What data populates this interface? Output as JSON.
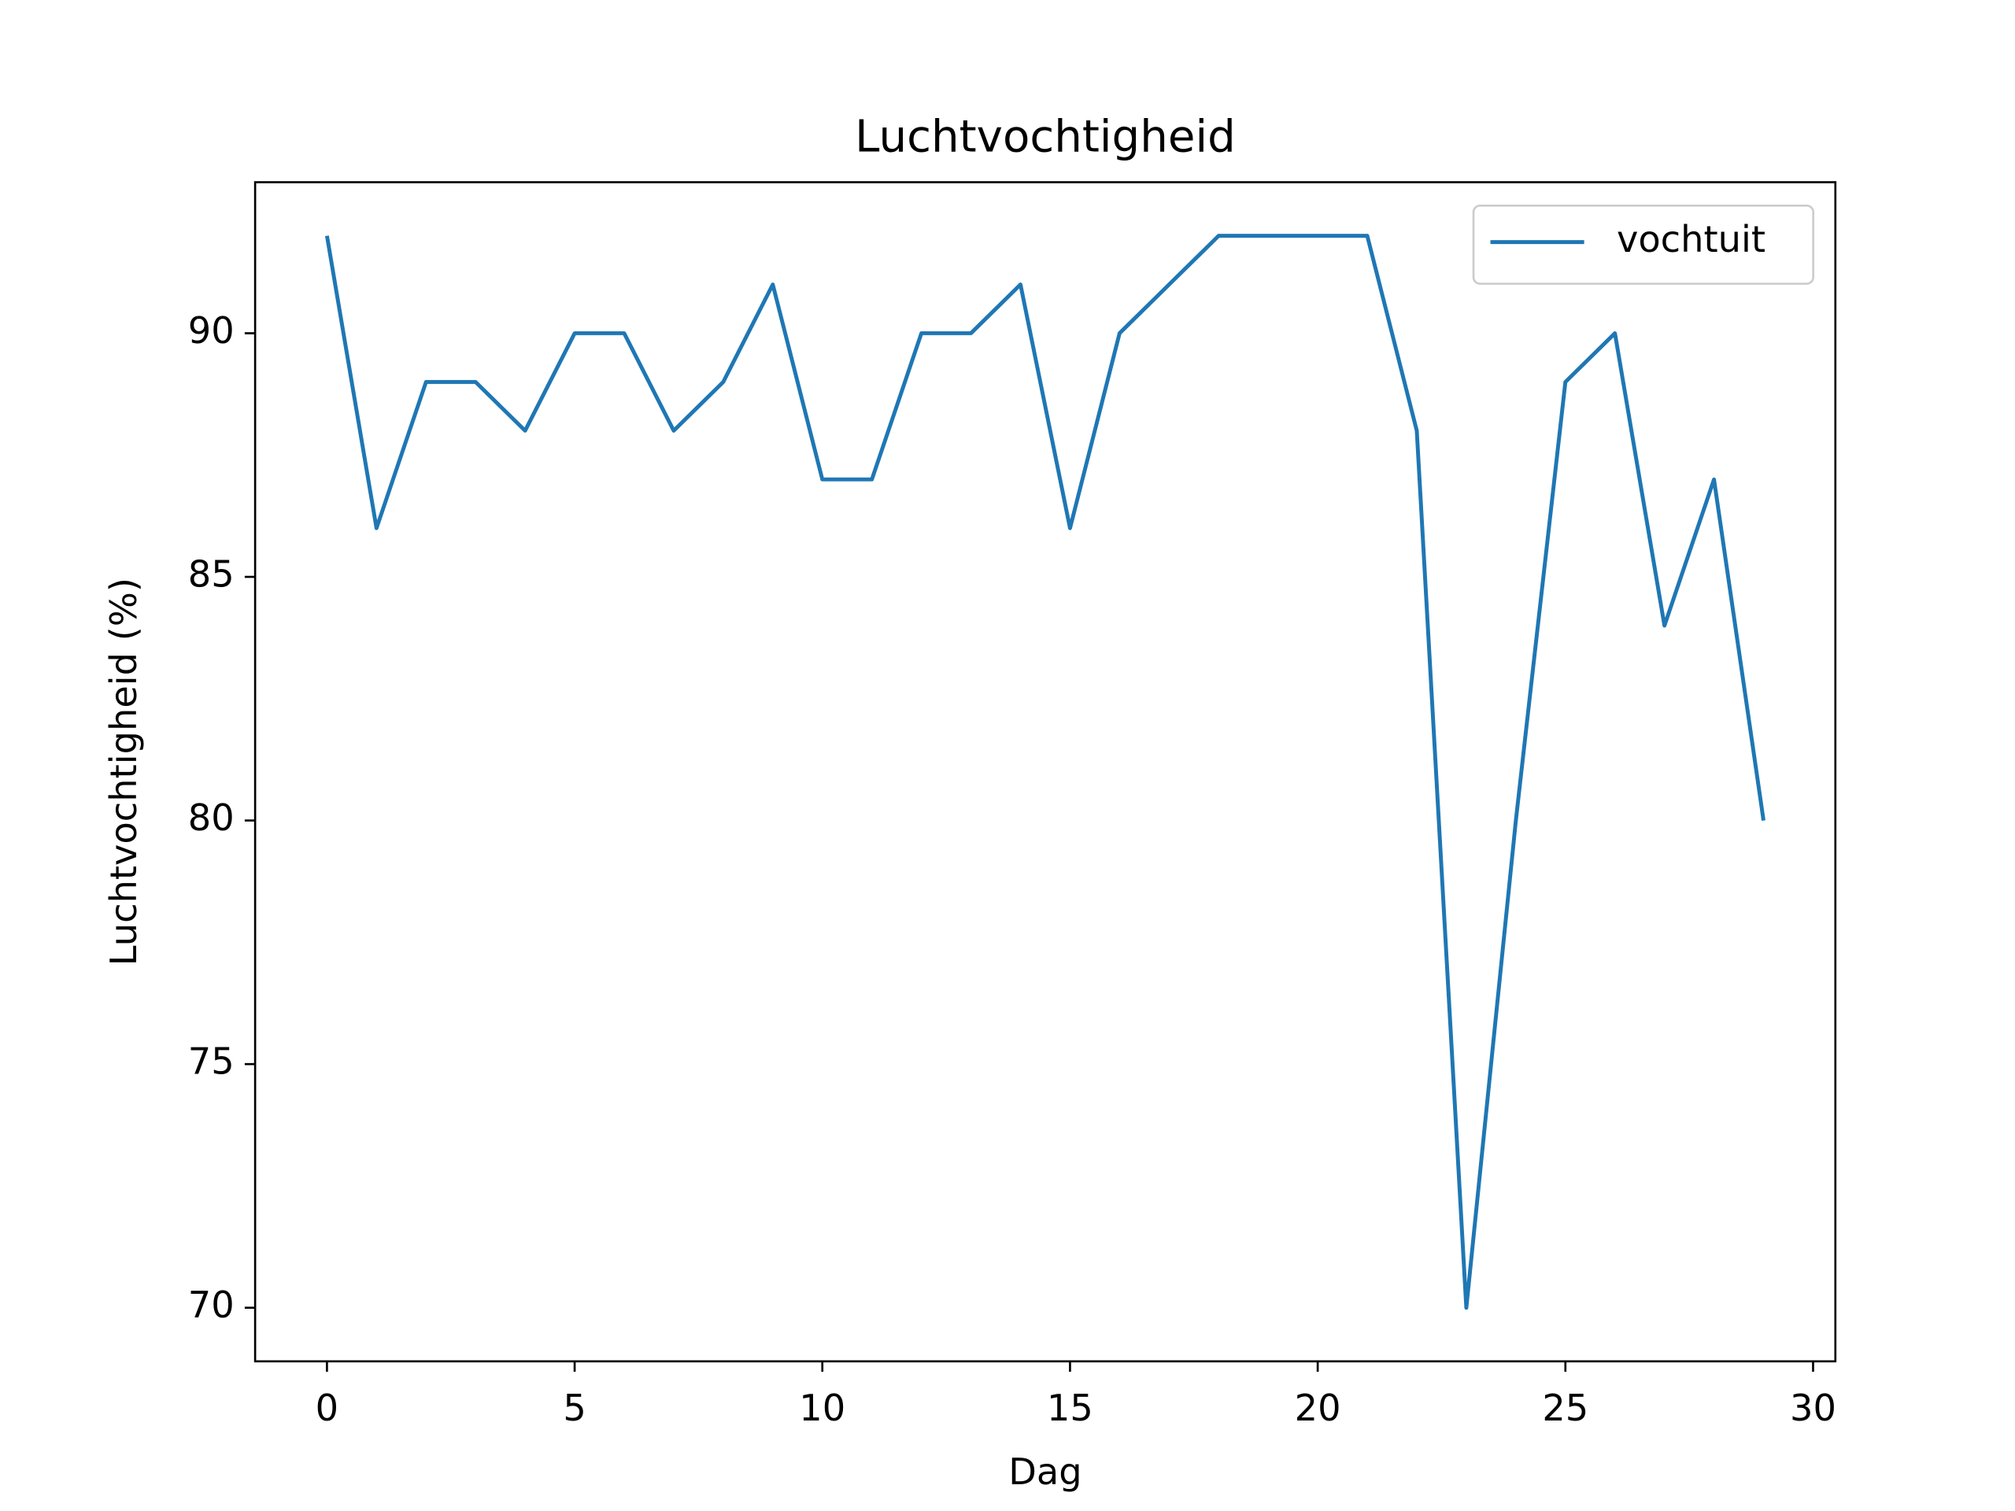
{
  "chart_data": {
    "type": "line",
    "title": "Luchtvochtigheid",
    "x_label": "Dag",
    "y_label": "Luchtvochtigheid (%)",
    "x": [
      0,
      1,
      2,
      3,
      4,
      5,
      6,
      7,
      8,
      9,
      10,
      11,
      12,
      13,
      14,
      15,
      16,
      17,
      18,
      19,
      20,
      21,
      22,
      23,
      24,
      25,
      26,
      27,
      28,
      29
    ],
    "series": [
      {
        "name": "vochtuit",
        "color": "#1f77b4",
        "values": [
          92,
          86,
          89,
          89,
          88,
          90,
          90,
          88,
          89,
          91,
          87,
          87,
          90,
          90,
          91,
          86,
          90,
          91,
          92,
          92,
          92,
          92,
          88,
          70,
          80,
          89,
          90,
          84,
          87,
          80
        ]
      }
    ],
    "xlim": [
      -1.45,
      30.45
    ],
    "ylim": [
      68.9,
      93.1
    ],
    "xticks": [
      0,
      5,
      10,
      15,
      20,
      25,
      30
    ],
    "yticks": [
      70,
      75,
      80,
      85,
      90
    ],
    "legend": "upper right",
    "grid": false
  }
}
